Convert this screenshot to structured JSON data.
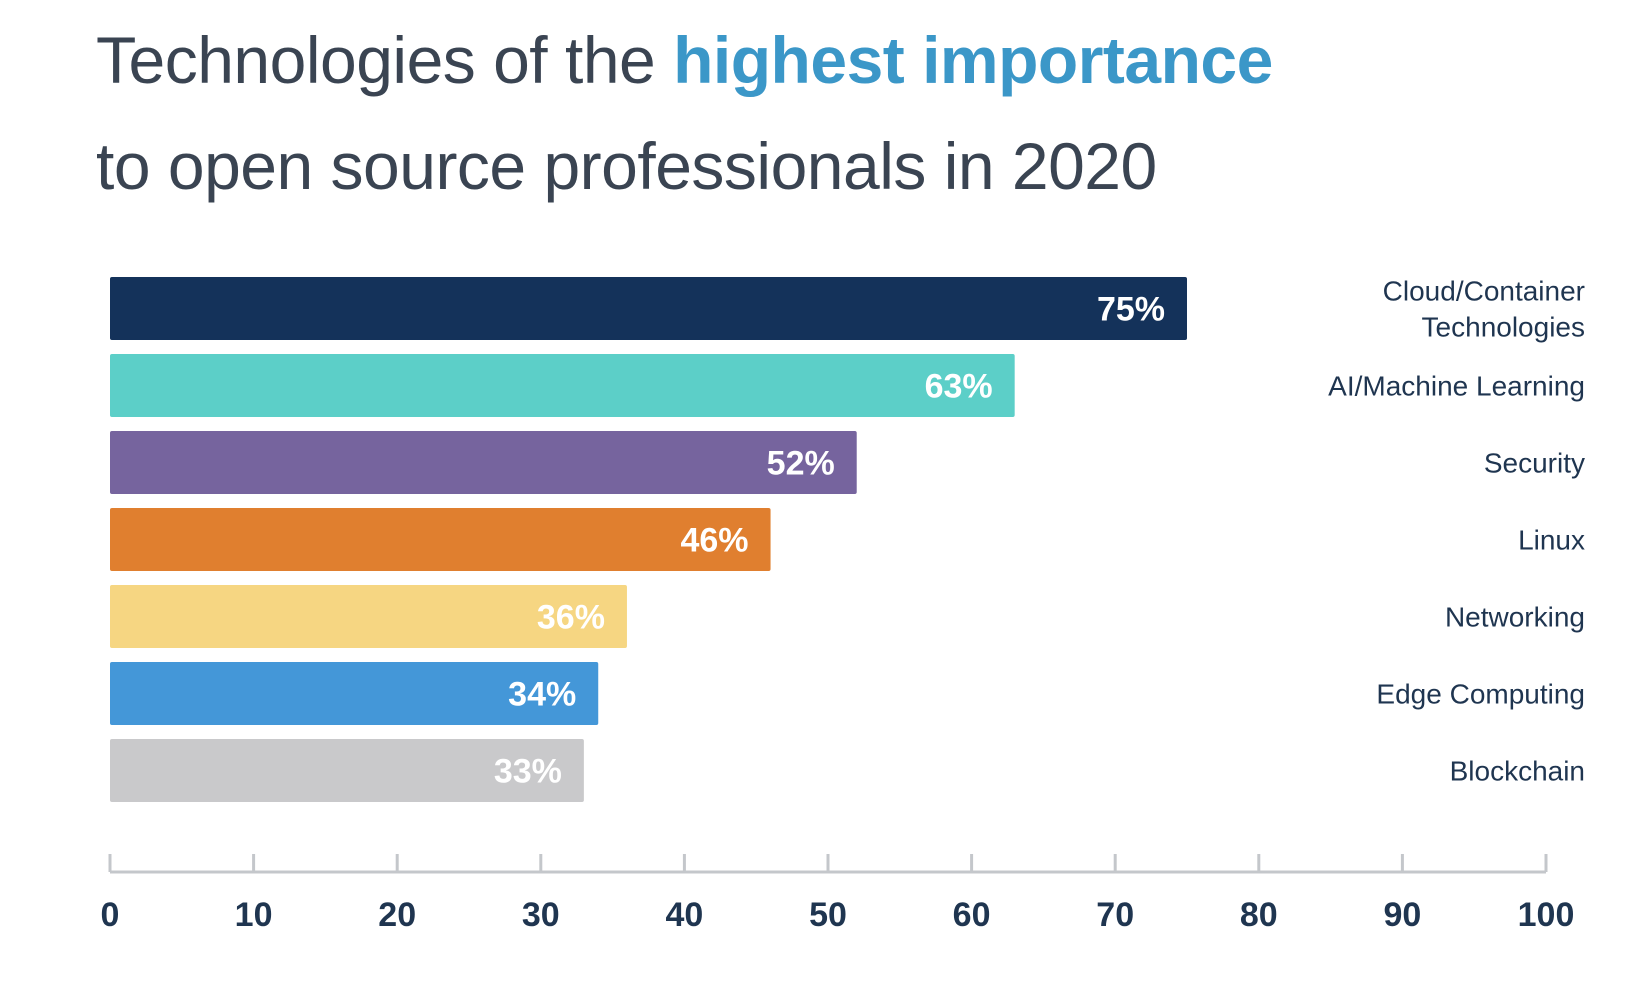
{
  "chart_data": {
    "type": "bar",
    "orientation": "horizontal",
    "title": {
      "part1": "Technologies of the ",
      "highlight": "highest importance",
      "line2": "to open source professionals in 2020"
    },
    "categories": [
      "Cloud/Container Technologies",
      "AI/Machine Learning",
      "Security",
      "Linux",
      "Networking",
      "Edge Computing",
      "Blockchain"
    ],
    "category_lines": [
      [
        "Cloud/Container",
        "Technologies"
      ],
      [
        "AI/Machine Learning"
      ],
      [
        "Security"
      ],
      [
        "Linux"
      ],
      [
        "Networking"
      ],
      [
        "Edge Computing"
      ],
      [
        "Blockchain"
      ]
    ],
    "values": [
      75,
      63,
      52,
      46,
      36,
      34,
      33
    ],
    "value_labels": [
      "75%",
      "63%",
      "52%",
      "46%",
      "36%",
      "34%",
      "33%"
    ],
    "colors": [
      "#14325a",
      "#5ccfc8",
      "#76649e",
      "#e07f2f",
      "#f6d682",
      "#4497d8",
      "#c9c9cb"
    ],
    "xlim": [
      0,
      100
    ],
    "xticks": [
      "0",
      "10",
      "20",
      "30",
      "40",
      "50",
      "60",
      "70",
      "80",
      "90",
      "100"
    ],
    "grid": false,
    "title_color": "#3a4452",
    "highlight_color": "#3b97c8"
  }
}
